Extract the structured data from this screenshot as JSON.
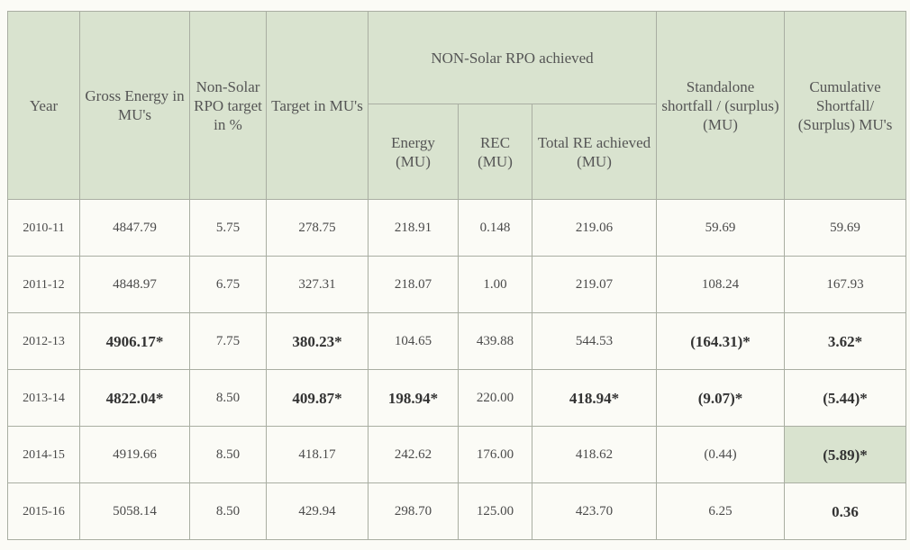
{
  "table": {
    "headers": [
      "Year",
      "Gross Energy in MU's",
      "Non-Solar RPO target in %",
      "Target in MU's",
      "Standalone shortfall / (surplus) (MU)",
      "Cumulative Shortfall/ (Surplus) MU's"
    ],
    "group": "NON-Solar RPO achieved",
    "subheaders": [
      "Energy (MU)",
      "REC (MU)",
      "Total RE achieved (MU)"
    ],
    "rows": [
      [
        "2010-11",
        "4847.79",
        "5.75",
        "278.75",
        "218.91",
        "0.148",
        "219.06",
        "59.69",
        "59.69"
      ],
      [
        "2011-12",
        "4848.97",
        "6.75",
        "327.31",
        "218.07",
        "1.00",
        "219.07",
        "108.24",
        "167.93"
      ],
      [
        "2012-13",
        "4906.17*",
        "7.75",
        "380.23*",
        "104.65",
        "439.88",
        "544.53",
        "(164.31)*",
        "3.62*"
      ],
      [
        "2013-14",
        "4822.04*",
        "8.50",
        "409.87*",
        "198.94*",
        "220.00",
        "418.94*",
        "(9.07)*",
        "(5.44)*"
      ],
      [
        "2014-15",
        "4919.66",
        "8.50",
        "418.17",
        "242.62",
        "176.00",
        "418.62",
        "(0.44)",
        "(5.89)*"
      ],
      [
        "2015-16",
        "5058.14",
        "8.50",
        "429.94",
        "298.70",
        "125.00",
        "423.70",
        "6.25",
        "0.36"
      ]
    ]
  }
}
